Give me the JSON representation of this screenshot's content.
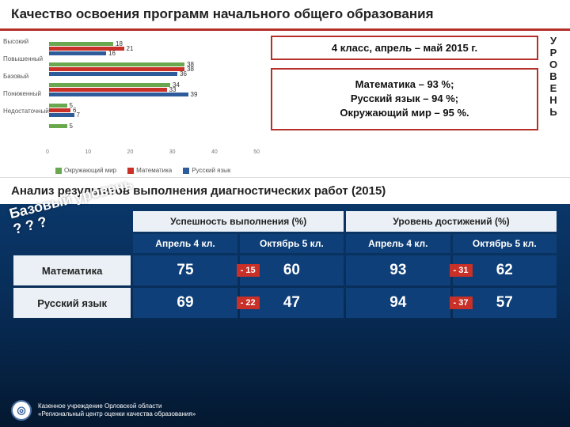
{
  "title": "Качество освоения программ начального общего образования",
  "chart": {
    "type": "bar",
    "categories": [
      "Высокий",
      "Повышенный",
      "Базовый",
      "Пониженный",
      "Недостаточный"
    ],
    "series": [
      {
        "name": "Окружающий мир",
        "color": "#6aa84f"
      },
      {
        "name": "Математика",
        "color": "#c83028"
      },
      {
        "name": "Русский язык",
        "color": "#2e5c9a"
      }
    ],
    "values": {
      "Высокий": {
        "Окружающий мир": 18,
        "Математика": 21,
        "Русский язык": 16
      },
      "Повышенный": {
        "Окружающий мир": 38,
        "Математика": 38,
        "Русский язык": 36
      },
      "Базовый": {
        "Окружающий мир": 34,
        "Математика": 33,
        "Русский язык": 39
      },
      "Пониженный": {
        "Окружающий мир": 5,
        "Математика": 6,
        "Русский язык": 7
      },
      "Недостаточный": {
        "Окружающий мир": 5,
        "Математика": null,
        "Русский язык": null
      }
    },
    "xlim": [
      0,
      60
    ],
    "xticks": [
      0,
      10,
      20,
      30,
      40,
      50
    ],
    "background": "#ffffff",
    "label_fontsize": 8
  },
  "info": {
    "period": "4 класс, апрель – май 2015 г.",
    "stats_lines": [
      "Математика – 93 %;",
      "Русский язык – 94 %;",
      "Окружающий мир – 95 %."
    ],
    "side_word": "УРОВЕНЬ"
  },
  "analysis_title": "Анализ результатов выполнения диагностических работ (2015)",
  "rotated_label": "Базовый уровень ? ? ?",
  "table": {
    "headers_top": [
      "Успешность выполнения (%)",
      "Уровень достижений (%)"
    ],
    "headers_sub": [
      "Апрель 4 кл.",
      "Октябрь 5 кл.",
      "Апрель 4 кл.",
      "Октябрь 5 кл."
    ],
    "rows": [
      {
        "label": "Математика",
        "cells": [
          {
            "value": 75
          },
          {
            "value": 60,
            "delta": "- 15"
          },
          {
            "value": 93
          },
          {
            "value": 62,
            "delta": "- 31"
          }
        ]
      },
      {
        "label": "Русский язык",
        "cells": [
          {
            "value": 69
          },
          {
            "value": 47,
            "delta": "- 22"
          },
          {
            "value": 94
          },
          {
            "value": 57,
            "delta": "- 37"
          }
        ]
      }
    ],
    "colors": {
      "header_bg": "#eaf0f6",
      "num_bg": "#0e3f78",
      "delta_bg": "#c83028",
      "text_light": "#ffffff"
    }
  },
  "footer": {
    "line1": "Казенное учреждение Орловской области",
    "line2": "«Региональный центр оценки качества образования»"
  }
}
